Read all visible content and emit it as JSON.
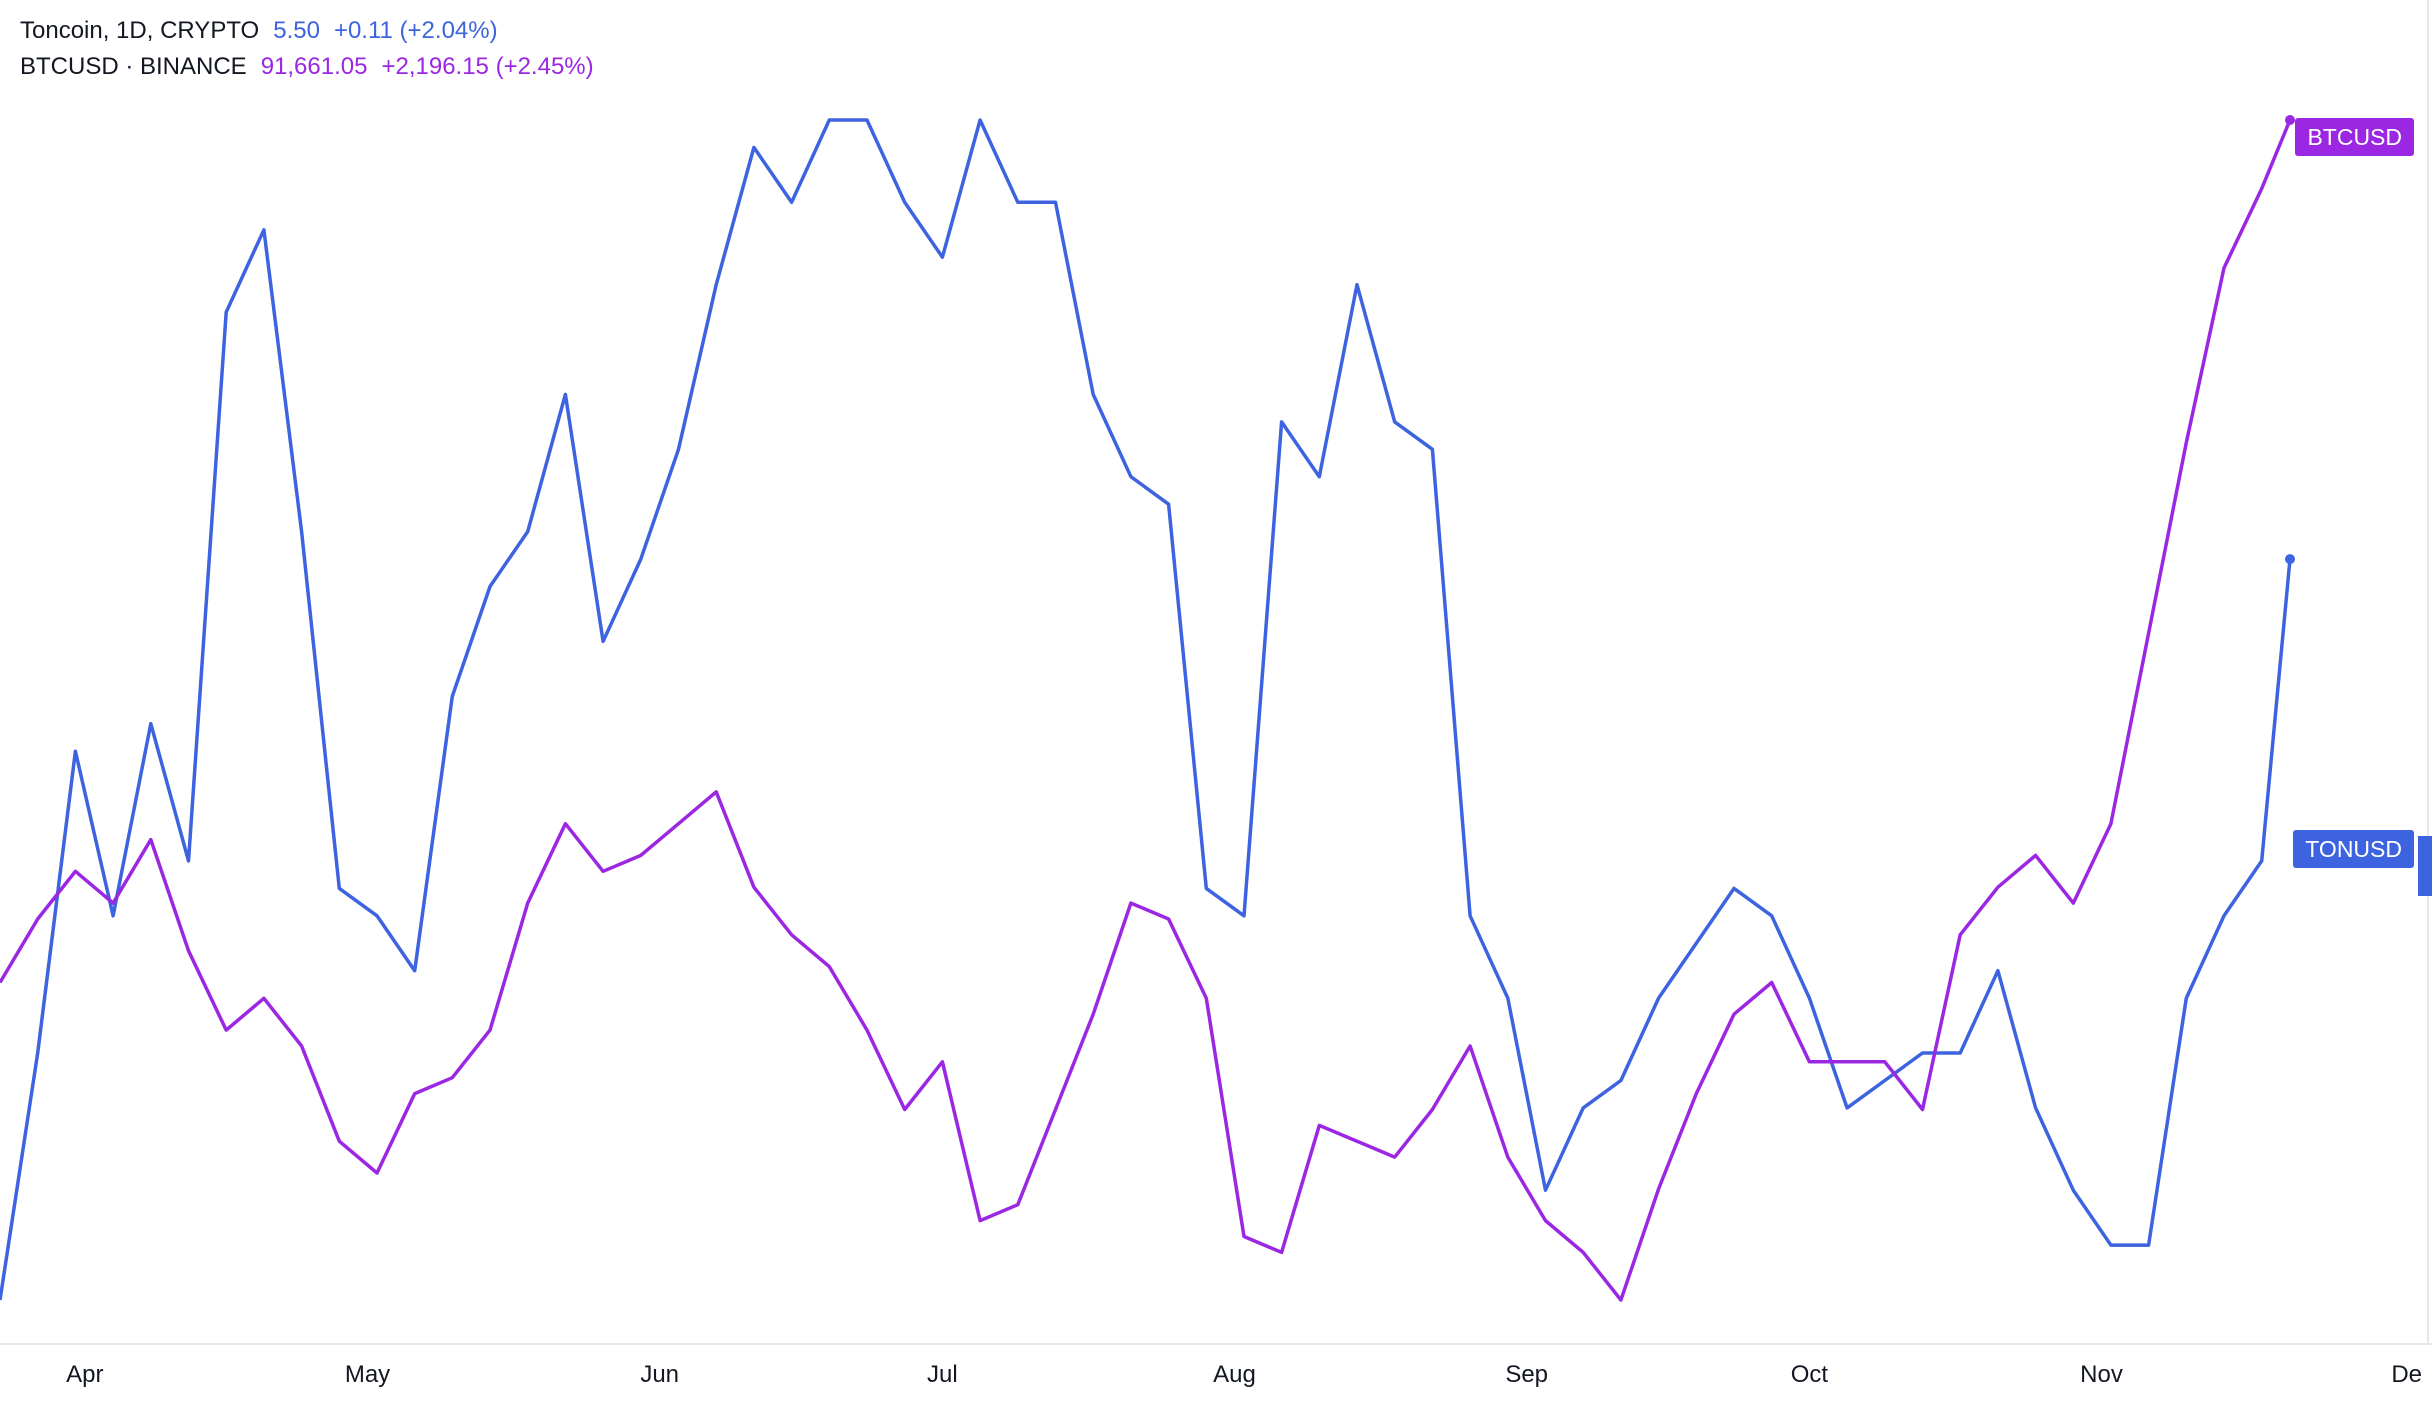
{
  "legend": {
    "ton": {
      "symbol": "Toncoin, 1D, CRYPTO",
      "price": "5.50",
      "change": "+0.11 (+2.04%)"
    },
    "btc": {
      "symbol": "BTCUSD · BINANCE",
      "price": "91,661.05",
      "change": "+2,196.15 (+2.45%)"
    }
  },
  "price_tags": {
    "ton": "TONUSD",
    "btc": "BTCUSD"
  },
  "colors": {
    "ton": "#3d63e0",
    "btc": "#9b27e3"
  },
  "chart_data": {
    "type": "line",
    "x_tick_labels": [
      "Apr",
      "May",
      "Jun",
      "Jul",
      "Aug",
      "Sep",
      "Oct",
      "Nov",
      "De"
    ],
    "x": [
      "2024-03-23",
      "2024-03-27",
      "2024-03-31",
      "2024-04-04",
      "2024-04-08",
      "2024-04-12",
      "2024-04-16",
      "2024-04-20",
      "2024-04-24",
      "2024-04-28",
      "2024-05-02",
      "2024-05-06",
      "2024-05-10",
      "2024-05-14",
      "2024-05-18",
      "2024-05-22",
      "2024-05-26",
      "2024-05-30",
      "2024-06-03",
      "2024-06-07",
      "2024-06-11",
      "2024-06-15",
      "2024-06-19",
      "2024-06-23",
      "2024-06-27",
      "2024-07-01",
      "2024-07-05",
      "2024-07-09",
      "2024-07-13",
      "2024-07-17",
      "2024-07-21",
      "2024-07-25",
      "2024-07-29",
      "2024-08-02",
      "2024-08-06",
      "2024-08-10",
      "2024-08-14",
      "2024-08-18",
      "2024-08-22",
      "2024-08-26",
      "2024-08-30",
      "2024-09-03",
      "2024-09-07",
      "2024-09-11",
      "2024-09-15",
      "2024-09-19",
      "2024-09-23",
      "2024-09-27",
      "2024-10-01",
      "2024-10-05",
      "2024-10-09",
      "2024-10-13",
      "2024-10-17",
      "2024-10-21",
      "2024-10-25",
      "2024-10-29",
      "2024-11-02",
      "2024-11-06",
      "2024-11-10",
      "2024-11-14",
      "2024-11-18",
      "2024-11-21"
    ],
    "series": [
      {
        "name": "Toncoin, 1D, CRYPTO",
        "values": [
          2.8,
          3.7,
          4.8,
          4.2,
          4.9,
          4.4,
          6.4,
          6.7,
          5.6,
          4.3,
          4.2,
          4.0,
          5.0,
          5.4,
          5.6,
          6.1,
          5.2,
          5.5,
          5.9,
          6.5,
          7.0,
          6.8,
          7.1,
          7.1,
          6.8,
          6.6,
          7.1,
          6.8,
          6.8,
          6.1,
          5.8,
          5.7,
          4.3,
          4.2,
          6.0,
          5.8,
          6.5,
          6.0,
          5.9,
          4.2,
          3.9,
          3.2,
          3.5,
          3.6,
          3.9,
          4.1,
          4.3,
          4.2,
          3.9,
          3.5,
          3.6,
          3.7,
          3.7,
          4.0,
          3.5,
          3.2,
          3.0,
          3.0,
          3.9,
          4.2,
          4.4,
          5.5
        ]
      },
      {
        "name": "BTCUSD · BINANCE",
        "values": [
          64500,
          66500,
          68000,
          67000,
          69000,
          65500,
          63000,
          64000,
          62500,
          59500,
          58500,
          61000,
          61500,
          63000,
          67000,
          69500,
          68000,
          68500,
          69500,
          70500,
          67500,
          66000,
          65000,
          63000,
          60500,
          62000,
          57000,
          57500,
          60500,
          63500,
          67000,
          66500,
          64000,
          56500,
          56000,
          60000,
          59500,
          59000,
          60500,
          62500,
          59000,
          57000,
          56000,
          54500,
          58000,
          61000,
          63500,
          64500,
          62000,
          62000,
          62000,
          60500,
          66000,
          67500,
          68500,
          67000,
          69500,
          75500,
          81500,
          87000,
          89500,
          91661
        ]
      }
    ],
    "ylabel": "",
    "xlabel": "",
    "grid": false,
    "legend_position": "top-left"
  }
}
